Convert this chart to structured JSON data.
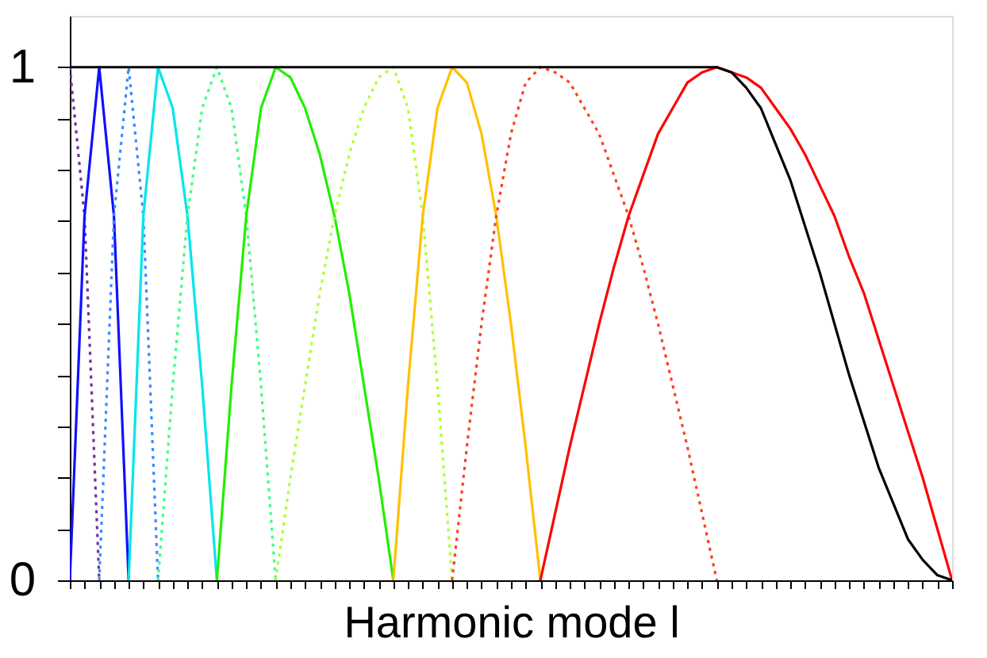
{
  "chart_data": {
    "type": "line",
    "xlabel": "Harmonic mode l",
    "categories": [
      null,
      null,
      null,
      null,
      null,
      null,
      null,
      null,
      null,
      null,
      null,
      null,
      null,
      null,
      null,
      null,
      null,
      null,
      null,
      null,
      null,
      null,
      null,
      null,
      null,
      null,
      null,
      null,
      null,
      null,
      null,
      null,
      null,
      null,
      null,
      null,
      null,
      null,
      null,
      null,
      null,
      null,
      null,
      null,
      null,
      null,
      null,
      null,
      null,
      null,
      null,
      null,
      null,
      null,
      null,
      null,
      null,
      null,
      null,
      null,
      null
    ],
    "ylim": [
      0,
      1.1
    ],
    "yticks": [
      0,
      {
        "value": 0.1,
        "label": null
      },
      {
        "value": 0.2,
        "label": null
      },
      {
        "value": 0.3,
        "label": null
      },
      {
        "value": 0.4,
        "label": null
      },
      {
        "value": 0.5,
        "label": null
      },
      {
        "value": 0.6,
        "label": null
      },
      {
        "value": 0.7,
        "label": null
      },
      {
        "value": 0.8,
        "label": null
      },
      {
        "value": 0.9,
        "label": null
      },
      1
    ],
    "tick_labels": "y",
    "series": [
      {
        "color": "#7030a0",
        "line_style": "dotted",
        "values": [
          1,
          0.71,
          0,
          null,
          null,
          null,
          null,
          null,
          null,
          null,
          null,
          null,
          null,
          null,
          null,
          null,
          null,
          null,
          null,
          null,
          null,
          null,
          null,
          null,
          null,
          null,
          null,
          null,
          null,
          null,
          null,
          null,
          null,
          null,
          null,
          null,
          null,
          null,
          null,
          null,
          null,
          null,
          null,
          null,
          null,
          null,
          null,
          null,
          null,
          null,
          null,
          null,
          null,
          null,
          null,
          null,
          null,
          null,
          null,
          null,
          null
        ]
      },
      {
        "color": "#1010ff",
        "line_style": "solid",
        "values": [
          0,
          0.71,
          1,
          0.71,
          0,
          null,
          null,
          null,
          null,
          null,
          null,
          null,
          null,
          null,
          null,
          null,
          null,
          null,
          null,
          null,
          null,
          null,
          null,
          null,
          null,
          null,
          null,
          null,
          null,
          null,
          null,
          null,
          null,
          null,
          null,
          null,
          null,
          null,
          null,
          null,
          null,
          null,
          null,
          null,
          null,
          null,
          null,
          null,
          null,
          null,
          null,
          null,
          null,
          null,
          null,
          null,
          null,
          null,
          null,
          null,
          null
        ]
      },
      {
        "color": "#3c8cff",
        "line_style": "dotted",
        "values": [
          null,
          null,
          0,
          0.71,
          1,
          0.71,
          0,
          null,
          null,
          null,
          null,
          null,
          null,
          null,
          null,
          null,
          null,
          null,
          null,
          null,
          null,
          null,
          null,
          null,
          null,
          null,
          null,
          null,
          null,
          null,
          null,
          null,
          null,
          null,
          null,
          null,
          null,
          null,
          null,
          null,
          null,
          null,
          null,
          null,
          null,
          null,
          null,
          null,
          null,
          null,
          null,
          null,
          null,
          null,
          null,
          null,
          null,
          null,
          null,
          null,
          null
        ]
      },
      {
        "color": "#00e5ee",
        "line_style": "solid",
        "values": [
          null,
          null,
          null,
          null,
          0,
          0.71,
          1,
          0.92,
          0.71,
          0.38,
          0,
          null,
          null,
          null,
          null,
          null,
          null,
          null,
          null,
          null,
          null,
          null,
          null,
          null,
          null,
          null,
          null,
          null,
          null,
          null,
          null,
          null,
          null,
          null,
          null,
          null,
          null,
          null,
          null,
          null,
          null,
          null,
          null,
          null,
          null,
          null,
          null,
          null,
          null,
          null,
          null,
          null,
          null,
          null,
          null,
          null,
          null,
          null,
          null,
          null,
          null
        ]
      },
      {
        "color": "#40ff80",
        "line_style": "dotted",
        "values": [
          null,
          null,
          null,
          null,
          null,
          null,
          0,
          0.38,
          0.71,
          0.92,
          1,
          0.92,
          0.71,
          0.38,
          0,
          null,
          null,
          null,
          null,
          null,
          null,
          null,
          null,
          null,
          null,
          null,
          null,
          null,
          null,
          null,
          null,
          null,
          null,
          null,
          null,
          null,
          null,
          null,
          null,
          null,
          null,
          null,
          null,
          null,
          null,
          null,
          null,
          null,
          null,
          null,
          null,
          null,
          null,
          null,
          null,
          null,
          null,
          null,
          null,
          null,
          null
        ]
      },
      {
        "color": "#22ee00",
        "line_style": "solid",
        "values": [
          null,
          null,
          null,
          null,
          null,
          null,
          null,
          null,
          null,
          null,
          0,
          0.38,
          0.71,
          0.92,
          1,
          0.98,
          0.92,
          0.83,
          0.71,
          0.56,
          0.38,
          0.2,
          0,
          null,
          null,
          null,
          null,
          null,
          null,
          null,
          null,
          null,
          null,
          null,
          null,
          null,
          null,
          null,
          null,
          null,
          null,
          null,
          null,
          null,
          null,
          null,
          null,
          null,
          null,
          null,
          null,
          null,
          null,
          null,
          null,
          null,
          null,
          null,
          null,
          null,
          null
        ]
      },
      {
        "color": "#b0ff30",
        "line_style": "dotted",
        "values": [
          null,
          null,
          null,
          null,
          null,
          null,
          null,
          null,
          null,
          null,
          null,
          null,
          null,
          null,
          0,
          0.2,
          0.38,
          0.56,
          0.71,
          0.83,
          0.92,
          0.98,
          1,
          0.92,
          0.71,
          0.38,
          0,
          null,
          null,
          null,
          null,
          null,
          null,
          null,
          null,
          null,
          null,
          null,
          null,
          null,
          null,
          null,
          null,
          null,
          null,
          null,
          null,
          null,
          null,
          null,
          null,
          null,
          null,
          null,
          null,
          null,
          null,
          null,
          null,
          null,
          null
        ]
      },
      {
        "color": "#ffc000",
        "line_style": "solid",
        "values": [
          null,
          null,
          null,
          null,
          null,
          null,
          null,
          null,
          null,
          null,
          null,
          null,
          null,
          null,
          null,
          null,
          null,
          null,
          null,
          null,
          null,
          null,
          0,
          0.38,
          0.71,
          0.92,
          1,
          0.97,
          0.87,
          0.71,
          0.5,
          0.26,
          0,
          null,
          null,
          null,
          null,
          null,
          null,
          null,
          null,
          null,
          null,
          null,
          null,
          null,
          null,
          null,
          null,
          null,
          null,
          null,
          null,
          null,
          null,
          null,
          null,
          null,
          null,
          null,
          null
        ]
      },
      {
        "color": "#ff4020",
        "line_style": "dotted",
        "values": [
          null,
          null,
          null,
          null,
          null,
          null,
          null,
          null,
          null,
          null,
          null,
          null,
          null,
          null,
          null,
          null,
          null,
          null,
          null,
          null,
          null,
          null,
          null,
          null,
          null,
          null,
          0,
          0.26,
          0.5,
          0.71,
          0.87,
          0.97,
          1,
          0.99,
          0.97,
          0.92,
          0.87,
          0.79,
          0.71,
          0.61,
          0.5,
          0.38,
          0.26,
          0.13,
          0,
          null,
          null,
          null,
          null,
          null,
          null,
          null,
          null,
          null,
          null,
          null,
          null,
          null,
          null,
          null,
          null
        ]
      },
      {
        "color": "#ff0000",
        "line_style": "solid",
        "values": [
          null,
          null,
          null,
          null,
          null,
          null,
          null,
          null,
          null,
          null,
          null,
          null,
          null,
          null,
          null,
          null,
          null,
          null,
          null,
          null,
          null,
          null,
          null,
          null,
          null,
          null,
          null,
          null,
          null,
          null,
          null,
          null,
          0,
          0.13,
          0.26,
          0.38,
          0.5,
          0.61,
          0.71,
          0.79,
          0.87,
          0.92,
          0.97,
          0.99,
          1,
          0.99,
          0.98,
          0.96,
          0.92,
          0.88,
          0.83,
          0.77,
          0.71,
          0.63,
          0.56,
          0.47,
          0.38,
          0.29,
          0.2,
          0.1,
          0
        ]
      },
      {
        "color": "#000000",
        "line_style": "solid",
        "values": [
          1,
          1,
          1,
          1,
          1,
          1,
          1,
          1,
          1,
          1,
          1,
          1,
          1,
          1,
          1,
          1,
          1,
          1,
          1,
          1,
          1,
          1,
          1,
          1,
          1,
          1,
          1,
          1,
          1,
          1,
          1,
          1,
          1,
          1,
          1,
          1,
          1,
          1,
          1,
          1,
          1,
          1,
          1,
          1,
          1,
          0.99,
          0.96,
          0.92,
          0.85,
          0.78,
          0.69,
          0.6,
          0.5,
          0.4,
          0.31,
          0.22,
          0.15,
          0.08,
          0.04,
          0.01,
          0
        ]
      }
    ]
  }
}
